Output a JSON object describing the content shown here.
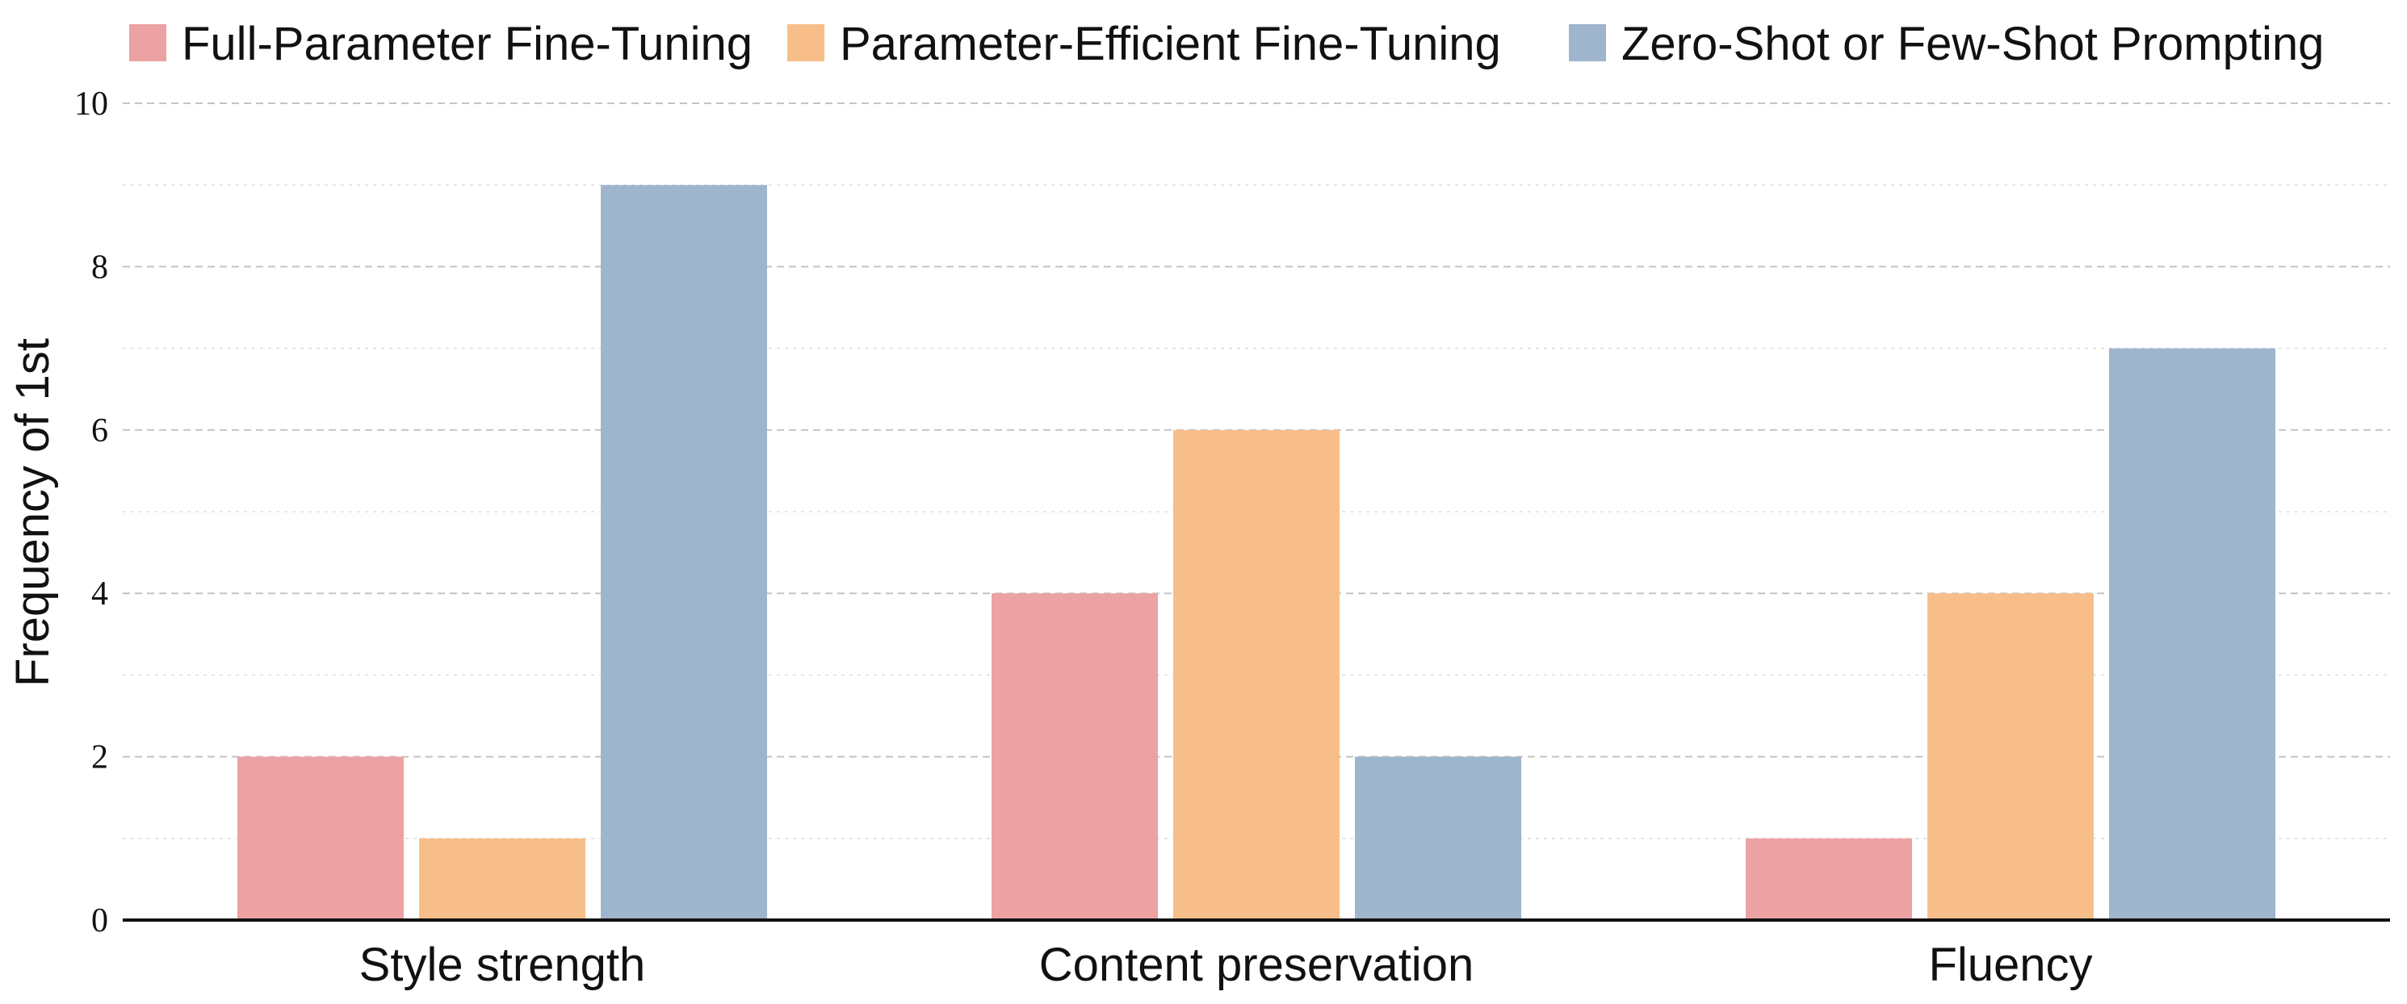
{
  "chart_data": {
    "type": "bar",
    "categories": [
      "Style strength",
      "Content preservation",
      "Fluency"
    ],
    "series": [
      {
        "name": "Full-Parameter Fine-Tuning",
        "color": "#eca1a3",
        "values": [
          2,
          4,
          1
        ]
      },
      {
        "name": "Parameter-Efficient Fine-Tuning",
        "color": "#f8be8a",
        "values": [
          1,
          6,
          4
        ]
      },
      {
        "name": "Zero-Shot or Few-Shot Prompting",
        "color": "#9fb4cd",
        "values": [
          9,
          2,
          7
        ]
      }
    ],
    "title": "",
    "xlabel": "",
    "ylabel": "Frequency of 1st",
    "ylim": [
      0,
      10
    ],
    "yticks": [
      "0",
      "2",
      "4",
      "6",
      "8",
      "10"
    ],
    "grid": "horizontal dashed",
    "legend_position": "top"
  }
}
